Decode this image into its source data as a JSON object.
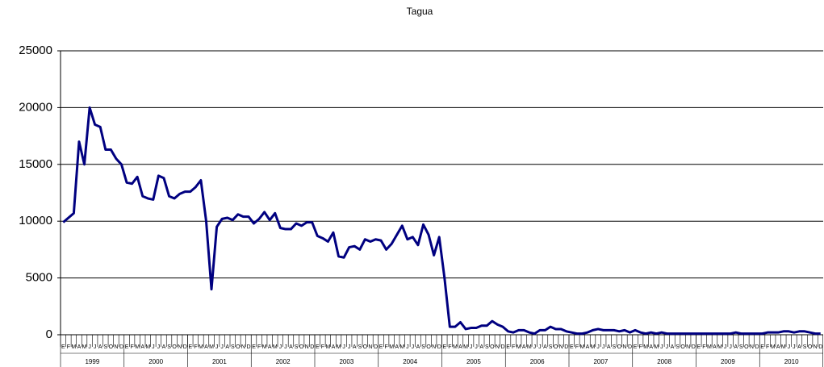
{
  "chart_data": {
    "type": "line",
    "title": "Tagua",
    "categories": [
      "E",
      "F",
      "M",
      "A",
      "M",
      "J",
      "J",
      "A",
      "S",
      "O",
      "N",
      "D",
      "E",
      "F",
      "M",
      "A",
      "M",
      "J",
      "J",
      "A",
      "S",
      "O",
      "N",
      "D",
      "E",
      "F",
      "M",
      "A",
      "M",
      "J",
      "J",
      "A",
      "S",
      "O",
      "N",
      "D",
      "E",
      "F",
      "M",
      "A",
      "M",
      "J",
      "J",
      "A",
      "S",
      "O",
      "N",
      "D",
      "E",
      "F",
      "M",
      "A",
      "M",
      "J",
      "J",
      "A",
      "S",
      "O",
      "N",
      "D",
      "E",
      "F",
      "M",
      "A",
      "M",
      "J",
      "J",
      "A",
      "S",
      "O",
      "N",
      "D",
      "E",
      "F",
      "M",
      "A",
      "M",
      "J",
      "J",
      "A",
      "S",
      "O",
      "N",
      "D",
      "E",
      "F",
      "M",
      "A",
      "M",
      "J",
      "J",
      "A",
      "S",
      "O",
      "N",
      "D",
      "E",
      "F",
      "M",
      "A",
      "M",
      "J",
      "J",
      "A",
      "S",
      "O",
      "N",
      "D",
      "E",
      "F",
      "M",
      "A",
      "M",
      "J",
      "J",
      "A",
      "S",
      "O",
      "N",
      "D",
      "E",
      "F",
      "M",
      "A",
      "M",
      "J",
      "J",
      "A",
      "S",
      "O",
      "N",
      "D",
      "E",
      "F",
      "M",
      "A",
      "M",
      "J",
      "J",
      "A",
      "S",
      "O",
      "N",
      "D"
    ],
    "years": [
      "1999",
      "2000",
      "2001",
      "2002",
      "2003",
      "2004",
      "2005",
      "2006",
      "2007",
      "2008",
      "2009",
      "2010"
    ],
    "values": [
      9900,
      10300,
      10700,
      17000,
      15000,
      20000,
      18500,
      18300,
      16300,
      16300,
      15500,
      15000,
      13400,
      13300,
      13900,
      12200,
      12000,
      11900,
      14000,
      13800,
      12200,
      12000,
      12400,
      12600,
      12600,
      13000,
      13600,
      10000,
      4000,
      9500,
      10200,
      10300,
      10100,
      10600,
      10400,
      10400,
      9800,
      10200,
      10800,
      10100,
      10700,
      9400,
      9300,
      9300,
      9800,
      9600,
      9900,
      9900,
      8700,
      8500,
      8200,
      9000,
      6900,
      6800,
      7700,
      7800,
      7500,
      8400,
      8200,
      8400,
      8300,
      7500,
      8000,
      8800,
      9600,
      8400,
      8600,
      7900,
      9700,
      8800,
      7000,
      8600,
      5000,
      700,
      700,
      1100,
      500,
      600,
      600,
      800,
      800,
      1200,
      900,
      700,
      300,
      200,
      400,
      400,
      200,
      100,
      400,
      400,
      700,
      500,
      500,
      300,
      200,
      100,
      100,
      200,
      400,
      500,
      400,
      400,
      400,
      300,
      400,
      200,
      400,
      200,
      100,
      200,
      100,
      200,
      100,
      100,
      100,
      100,
      100,
      100,
      100,
      100,
      100,
      100,
      100,
      100,
      100,
      200,
      100,
      100,
      100,
      100,
      100,
      200,
      200,
      200,
      300,
      300,
      200,
      300,
      300,
      200,
      100,
      100
    ],
    "color": "#000080",
    "ylim": [
      0,
      25000
    ],
    "yticks": [
      0,
      5000,
      10000,
      15000,
      20000,
      25000
    ],
    "grid": true
  }
}
